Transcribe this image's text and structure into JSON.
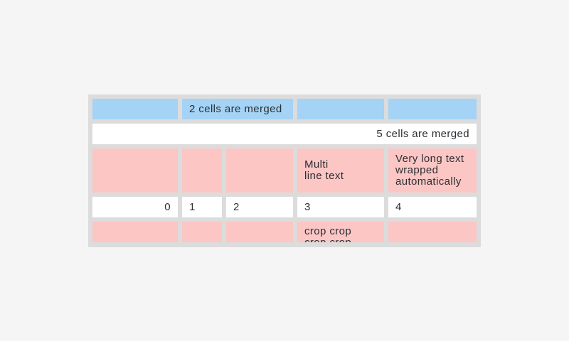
{
  "colors": {
    "page_bg": "#f5f5f5",
    "table_bg": "#dcdcdc",
    "row_blue": "#a4d3f6",
    "row_pink": "#fbc6c4",
    "row_white": "#ffffff",
    "text": "#2b2f33"
  },
  "table": {
    "rows": [
      {
        "cells": [
          {
            "text": ""
          },
          {
            "text": "2 cells are merged",
            "merged": 2
          },
          {
            "text": ""
          },
          {
            "text": ""
          }
        ]
      },
      {
        "cells": [
          {
            "text": "5 cells are merged",
            "merged": 5,
            "align": "right"
          }
        ]
      },
      {
        "cells": [
          {
            "text": ""
          },
          {
            "text": ""
          },
          {
            "text": ""
          },
          {
            "text": "Multi\nline text"
          },
          {
            "text": "Very long text wrapped automatically"
          }
        ]
      },
      {
        "cells": [
          {
            "text": "0",
            "align": "right"
          },
          {
            "text": "1"
          },
          {
            "text": "2"
          },
          {
            "text": "3"
          },
          {
            "text": "4"
          }
        ]
      },
      {
        "cells": [
          {
            "text": ""
          },
          {
            "text": ""
          },
          {
            "text": ""
          },
          {
            "text": "crop crop crop crop",
            "cropped": true
          },
          {
            "text": ""
          }
        ]
      }
    ]
  }
}
